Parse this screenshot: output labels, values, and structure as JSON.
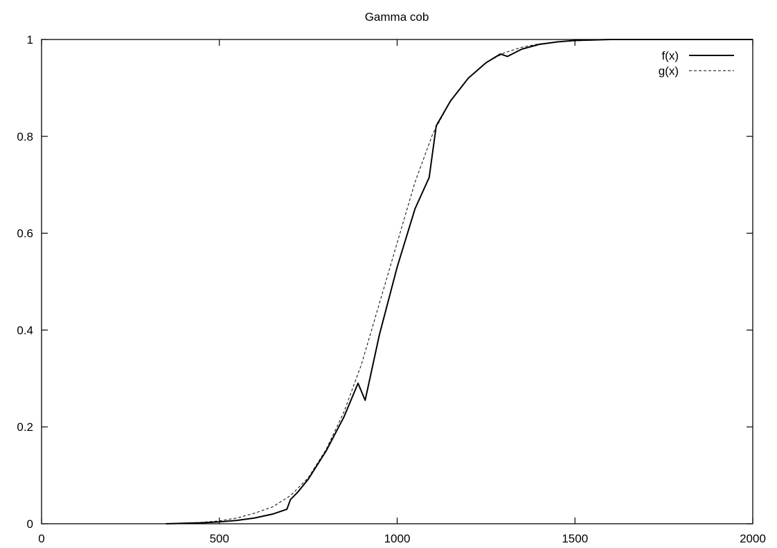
{
  "chart_data": {
    "type": "line",
    "title": "Gamma cob",
    "xlabel": "",
    "ylabel": "",
    "xlim": [
      0,
      2000
    ],
    "ylim": [
      0,
      1
    ],
    "x_ticks": [
      0,
      500,
      1000,
      1500,
      2000
    ],
    "y_ticks": [
      0,
      0.2,
      0.4,
      0.6,
      0.8,
      1
    ],
    "x_tick_labels": [
      "0",
      "500",
      "1000",
      "1500",
      "2000"
    ],
    "y_tick_labels": [
      "0",
      "0.2",
      "0.4",
      "0.6",
      "0.8",
      "1"
    ],
    "grid": false,
    "legend_position": "top-right",
    "colors": {
      "line": "#000000",
      "axes": "#000000",
      "background": "#ffffff"
    },
    "series": [
      {
        "name": "f(x)",
        "style": "solid",
        "x": [
          350,
          400,
          450,
          500,
          550,
          600,
          650,
          690,
          700,
          720,
          750,
          800,
          850,
          890,
          910,
          950,
          1000,
          1050,
          1090,
          1110,
          1150,
          1200,
          1250,
          1290,
          1310,
          1350,
          1400,
          1450,
          1500,
          1550,
          1600,
          2000
        ],
        "y": [
          0.0,
          0.001,
          0.002,
          0.004,
          0.007,
          0.012,
          0.02,
          0.03,
          0.05,
          0.065,
          0.092,
          0.15,
          0.22,
          0.29,
          0.255,
          0.39,
          0.53,
          0.65,
          0.715,
          0.822,
          0.873,
          0.92,
          0.952,
          0.97,
          0.965,
          0.98,
          0.99,
          0.995,
          0.998,
          0.999,
          1.0,
          1.0
        ]
      },
      {
        "name": "g(x)",
        "style": "dashed",
        "x": [
          350,
          400,
          450,
          500,
          550,
          600,
          650,
          700,
          750,
          800,
          850,
          900,
          950,
          1000,
          1050,
          1100,
          1150,
          1200,
          1250,
          1300,
          1350,
          1400,
          1450,
          1500,
          1550,
          1600,
          2000
        ],
        "y": [
          0.0,
          0.001,
          0.003,
          0.006,
          0.012,
          0.022,
          0.035,
          0.058,
          0.095,
          0.153,
          0.23,
          0.33,
          0.455,
          0.58,
          0.705,
          0.805,
          0.873,
          0.92,
          0.952,
          0.972,
          0.984,
          0.991,
          0.995,
          0.997,
          0.999,
          1.0,
          1.0
        ]
      }
    ]
  }
}
